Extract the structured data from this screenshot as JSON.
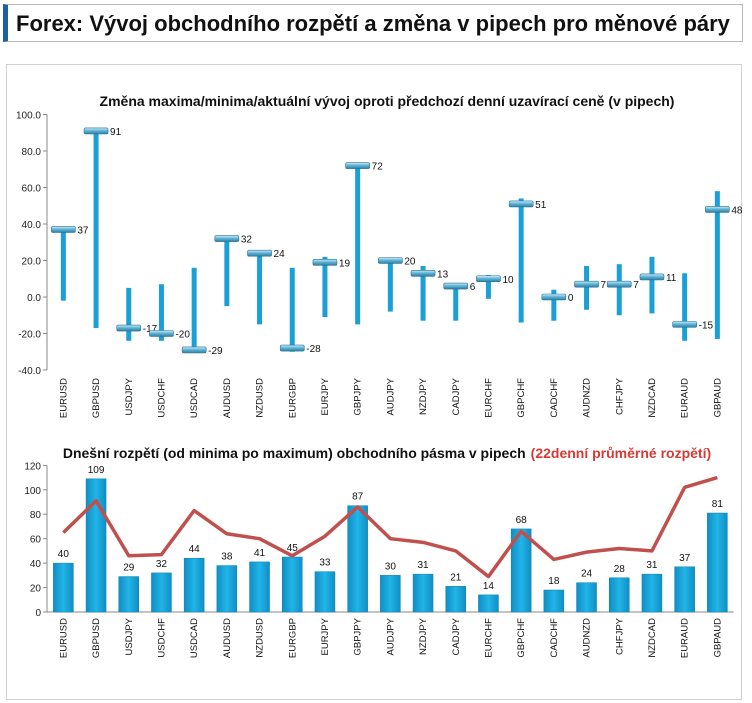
{
  "header": {
    "title": "Forex: Vývoj obchodního rozpětí a změna v pipech pro měnové páry"
  },
  "chart_data": [
    {
      "type": "high-low-close",
      "title": "Změna maxima/minima/aktuální vývoj oproti předchozí denní uzavírací ceně (v pipech)",
      "categories": [
        "EURUSD",
        "GBPUSD",
        "USDJPY",
        "USDCHF",
        "USDCAD",
        "AUDUSD",
        "NZDUSD",
        "EURGBP",
        "EURJPY",
        "GBPJPY",
        "AUDJPY",
        "NZDJPY",
        "CADJPY",
        "EURCHF",
        "GBPCHF",
        "CADCHF",
        "AUDNZD",
        "CHFJPY",
        "NZDCAD",
        "EURAUD",
        "GBPAUD"
      ],
      "high": [
        37,
        91,
        5,
        7,
        16,
        33,
        25,
        16,
        22,
        73,
        21,
        17,
        7,
        12,
        54,
        4,
        17,
        18,
        22,
        13,
        58
      ],
      "low": [
        -2,
        -17,
        -24,
        -24,
        -29,
        -5,
        -15,
        -30,
        -11,
        -15,
        -8,
        -13,
        -13,
        -1,
        -14,
        -13,
        -7,
        -10,
        -9,
        -24,
        -23
      ],
      "close": [
        37,
        91,
        -17,
        -20,
        -29,
        32,
        24,
        -28,
        19,
        72,
        20,
        13,
        6,
        10,
        51,
        0,
        7,
        7,
        11,
        -15,
        48
      ],
      "ylim": [
        -40,
        100
      ],
      "yticks": [
        "100.0",
        "80.0",
        "60.0",
        "40.0",
        "20.0",
        "0.0",
        "-20.0",
        "-40.0"
      ],
      "colors": {
        "range": "#1aa0d6",
        "marker": "#3aa6cf"
      }
    },
    {
      "type": "bar+line",
      "title": "Dnešní rozpětí (od minima po maximum) obchodního pásma v pipech",
      "title_highlight": "(22denní průměrné rozpětí)",
      "categories": [
        "EURUSD",
        "GBPUSD",
        "USDJPY",
        "USDCHF",
        "USDCAD",
        "AUDUSD",
        "NZDUSD",
        "EURGBP",
        "EURJPY",
        "GBPJPY",
        "AUDJPY",
        "NZDJPY",
        "CADJPY",
        "EURCHF",
        "GBPCHF",
        "CADCHF",
        "AUDNZD",
        "CHFJPY",
        "NZDCAD",
        "EURAUD",
        "GBPAUD"
      ],
      "bar_values": [
        40,
        109,
        29,
        32,
        44,
        38,
        41,
        45,
        33,
        87,
        30,
        31,
        21,
        14,
        68,
        18,
        24,
        28,
        31,
        37,
        81
      ],
      "line_values": [
        65,
        91,
        46,
        47,
        83,
        64,
        60,
        46,
        62,
        86,
        60,
        57,
        50,
        29,
        66,
        43,
        49,
        52,
        50,
        102,
        110
      ],
      "ylim": [
        0,
        120
      ],
      "yticks": [
        "120",
        "100",
        "80",
        "60",
        "40",
        "20",
        "0"
      ],
      "colors": {
        "bar": "#12a4dc",
        "line": "#c0504d",
        "highlight": "#d63a35"
      }
    }
  ]
}
